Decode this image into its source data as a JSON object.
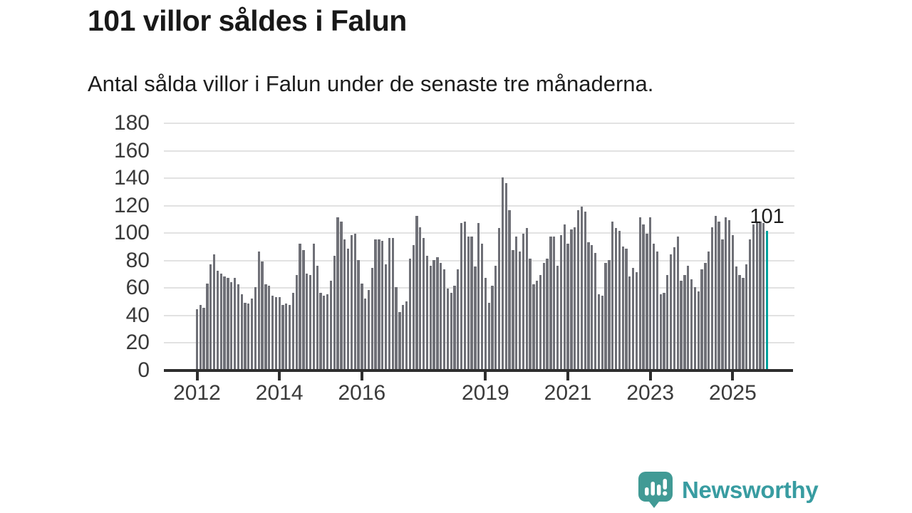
{
  "header": {
    "title": "101 villor såldes i Falun",
    "subtitle": "Antal sålda villor i Falun under de senaste tre månaderna."
  },
  "chart_data": {
    "type": "bar",
    "title": "101 villor såldes i Falun",
    "subtitle": "Antal sålda villor i Falun under de senaste tre månaderna.",
    "x_start": "2012-01",
    "x_frequency": "monthly",
    "values": [
      44,
      47,
      45,
      63,
      77,
      84,
      72,
      70,
      68,
      67,
      64,
      67,
      62,
      55,
      49,
      48,
      52,
      60,
      86,
      79,
      62,
      61,
      54,
      53,
      53,
      47,
      48,
      47,
      56,
      69,
      92,
      87,
      70,
      69,
      92,
      76,
      56,
      54,
      55,
      65,
      83,
      111,
      108,
      95,
      88,
      98,
      99,
      80,
      63,
      52,
      58,
      74,
      95,
      95,
      94,
      77,
      96,
      96,
      60,
      42,
      47,
      50,
      81,
      91,
      112,
      104,
      96,
      83,
      76,
      80,
      82,
      78,
      73,
      59,
      56,
      61,
      73,
      107,
      108,
      97,
      97,
      75,
      107,
      92,
      67,
      49,
      61,
      76,
      103,
      140,
      136,
      116,
      87,
      97,
      86,
      99,
      103,
      81,
      62,
      65,
      69,
      78,
      81,
      97,
      97,
      76,
      98,
      106,
      92,
      102,
      104,
      116,
      119,
      115,
      93,
      91,
      85,
      55,
      54,
      78,
      80,
      108,
      103,
      101,
      90,
      88,
      68,
      74,
      71,
      111,
      106,
      99,
      111,
      92,
      86,
      55,
      56,
      69,
      84,
      89,
      97,
      65,
      69,
      76,
      66,
      60,
      57,
      73,
      78,
      86,
      104,
      112,
      108,
      95,
      111,
      109,
      98,
      75,
      69,
      67,
      77,
      95,
      106,
      107,
      108,
      107,
      101
    ],
    "bar_color": "#6f7077",
    "highlight": {
      "index": 166,
      "value": 101,
      "label": "101",
      "color": "#00a19c"
    },
    "y_axis": {
      "min": 0,
      "max": 180,
      "tick_step": 20,
      "ticks": [
        0,
        20,
        40,
        60,
        80,
        100,
        120,
        140,
        160,
        180
      ]
    },
    "x_axis": {
      "ticks": [
        {
          "label": "2012",
          "month_index": 0
        },
        {
          "label": "2014",
          "month_index": 24
        },
        {
          "label": "2016",
          "month_index": 48
        },
        {
          "label": "2019",
          "month_index": 84
        },
        {
          "label": "2021",
          "month_index": 108
        },
        {
          "label": "2023",
          "month_index": 132
        },
        {
          "label": "2025",
          "month_index": 156
        }
      ]
    },
    "grid": "horizontal-only",
    "legend": "none",
    "annotation": "101"
  },
  "footer": {
    "brand": "Newsworthy",
    "brand_color": "#389ca1",
    "logo_icon_color": "#419a95",
    "logo_icon": "newsworthy-speech-bubble-chart-icon"
  }
}
